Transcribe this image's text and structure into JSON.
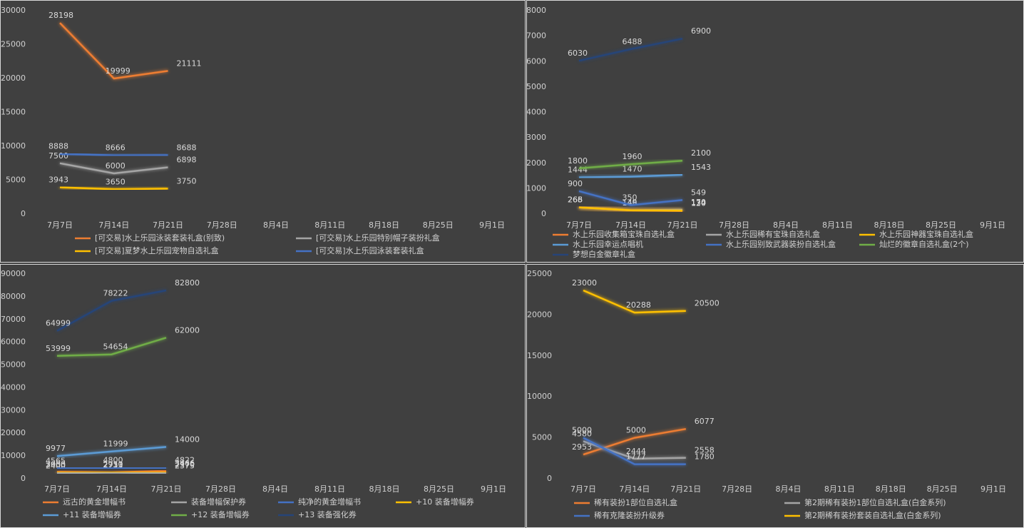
{
  "chart_data": [
    {
      "type": "line",
      "categories": [
        "7月7日",
        "7月14日",
        "7月21日",
        "7月28日",
        "8月4日",
        "8月11日",
        "8月18日",
        "8月25日",
        "9月1日"
      ],
      "ylim": [
        0,
        30000
      ],
      "yticks": [
        0,
        5000,
        10000,
        15000,
        20000,
        25000,
        30000
      ],
      "grid": false,
      "series": [
        {
          "name": "[可交易]水上乐园泳装套装礼盒(别致)",
          "color": "#ed7d31",
          "values": [
            28198,
            19999,
            21111,
            null,
            null,
            null,
            null,
            null,
            null
          ]
        },
        {
          "name": "[可交易]水上乐园特别帽子装扮礼盒",
          "color": "#a5a5a5",
          "values": [
            7500,
            6000,
            6898,
            null,
            null,
            null,
            null,
            null,
            null
          ]
        },
        {
          "name": "[可交易]夏梦水上乐园宠物自选礼盒",
          "color": "#ffc000",
          "values": [
            3943,
            3650,
            3750,
            null,
            null,
            null,
            null,
            null,
            null
          ]
        },
        {
          "name": "[可交易]水上乐园泳装套装礼盒",
          "color": "#4472c4",
          "values": [
            8888,
            8666,
            8688,
            null,
            null,
            null,
            null,
            null,
            null
          ]
        }
      ]
    },
    {
      "type": "line",
      "categories": [
        "7月7日",
        "7月14日",
        "7月21日",
        "7月28日",
        "8月4日",
        "8月11日",
        "8月18日",
        "8月25日",
        "9月1日"
      ],
      "ylim": [
        0,
        8000
      ],
      "yticks": [
        0,
        1000,
        2000,
        3000,
        4000,
        5000,
        6000,
        7000,
        8000
      ],
      "grid": false,
      "series": [
        {
          "name": "水上乐园收集箱宝珠自选礼盒",
          "color": "#ed7d31",
          "values": [
            266,
            145,
            120,
            null,
            null,
            null,
            null,
            null,
            null
          ]
        },
        {
          "name": "水上乐园稀有宝珠自选礼盒",
          "color": "#a5a5a5",
          "values": [
            268,
            149,
            170,
            null,
            null,
            null,
            null,
            null,
            null
          ]
        },
        {
          "name": "水上乐园神器宝珠自选礼盒",
          "color": "#ffc000",
          "values": [
            265,
            146,
            134,
            null,
            null,
            null,
            null,
            null,
            null
          ]
        },
        {
          "name": "水上乐园幸运点唱机",
          "color": "#5b9bd5",
          "values": [
            1444,
            1470,
            1543,
            null,
            null,
            null,
            null,
            null,
            null
          ]
        },
        {
          "name": "水上乐园别致武器装扮自选礼盒",
          "color": "#4472c4",
          "values": [
            900,
            350,
            549,
            null,
            null,
            null,
            null,
            null,
            null
          ]
        },
        {
          "name": "灿烂的徽章自选礼盒(2个)",
          "color": "#70ad47",
          "values": [
            1800,
            1960,
            2100,
            null,
            null,
            null,
            null,
            null,
            null
          ]
        },
        {
          "name": "梦想白金徽章礼盒",
          "color": "#264478",
          "values": [
            6030,
            6488,
            6900,
            null,
            null,
            null,
            null,
            null,
            null
          ]
        }
      ]
    },
    {
      "type": "line",
      "categories": [
        "7月7日",
        "7月14日",
        "7月21日",
        "7月28日",
        "8月4日",
        "8月11日",
        "8月18日",
        "8月25日",
        "9月1日"
      ],
      "ylim": [
        0,
        90000
      ],
      "yticks": [
        0,
        10000,
        20000,
        30000,
        40000,
        50000,
        60000,
        70000,
        80000,
        90000
      ],
      "grid": false,
      "series": [
        {
          "name": "远古的黄金增幅书",
          "color": "#ed7d31",
          "values": [
            3000,
            2733,
            3466,
            null,
            null,
            null,
            null,
            null,
            null
          ]
        },
        {
          "name": "装备增幅保护券",
          "color": "#a5a5a5",
          "values": [
            2400,
            2711,
            2375,
            null,
            null,
            null,
            null,
            null,
            null
          ]
        },
        {
          "name": "纯净的黄金增幅书",
          "color": "#4472c4",
          "values": [
            4565,
            4800,
            4822,
            null,
            null,
            null,
            null,
            null,
            null
          ]
        },
        {
          "name": "+10 装备增幅券",
          "color": "#ffc000",
          "values": [
            2933,
            2950,
            2970,
            null,
            null,
            null,
            null,
            null,
            null
          ]
        },
        {
          "name": "+11 装备增幅券",
          "color": "#5b9bd5",
          "values": [
            9977,
            11999,
            14000,
            null,
            null,
            null,
            null,
            null,
            null
          ]
        },
        {
          "name": "+12 装备增幅券",
          "color": "#70ad47",
          "values": [
            53999,
            54654,
            62000,
            null,
            null,
            null,
            null,
            null,
            null
          ]
        },
        {
          "name": "+13 装备强化券",
          "color": "#264478",
          "values": [
            64999,
            78222,
            82800,
            null,
            null,
            null,
            null,
            null,
            null
          ]
        }
      ]
    },
    {
      "type": "line",
      "categories": [
        "7月7日",
        "7月14日",
        "7月21日",
        "7月28日",
        "8月4日",
        "8月11日",
        "8月18日",
        "8月25日",
        "9月1日"
      ],
      "ylim": [
        0,
        25000
      ],
      "yticks": [
        0,
        5000,
        10000,
        15000,
        20000,
        25000
      ],
      "grid": false,
      "series": [
        {
          "name": "稀有装扮1部位自选礼盒",
          "color": "#ed7d31",
          "values": [
            2953,
            5000,
            6077,
            null,
            null,
            null,
            null,
            null,
            null
          ]
        },
        {
          "name": "第2期稀有装扮1部位自选礼盒(白金系列)",
          "color": "#a5a5a5",
          "values": [
            4580,
            2444,
            2558,
            null,
            null,
            null,
            null,
            null,
            null
          ]
        },
        {
          "name": "稀有克隆装扮升级券",
          "color": "#4472c4",
          "values": [
            5000,
            1777,
            1780,
            null,
            null,
            null,
            null,
            null,
            null
          ]
        },
        {
          "name": "第2期稀有装扮套装自选礼盒(白金系列)",
          "color": "#ffc000",
          "values": [
            23000,
            20288,
            20500,
            null,
            null,
            null,
            null,
            null,
            null
          ]
        }
      ]
    }
  ]
}
